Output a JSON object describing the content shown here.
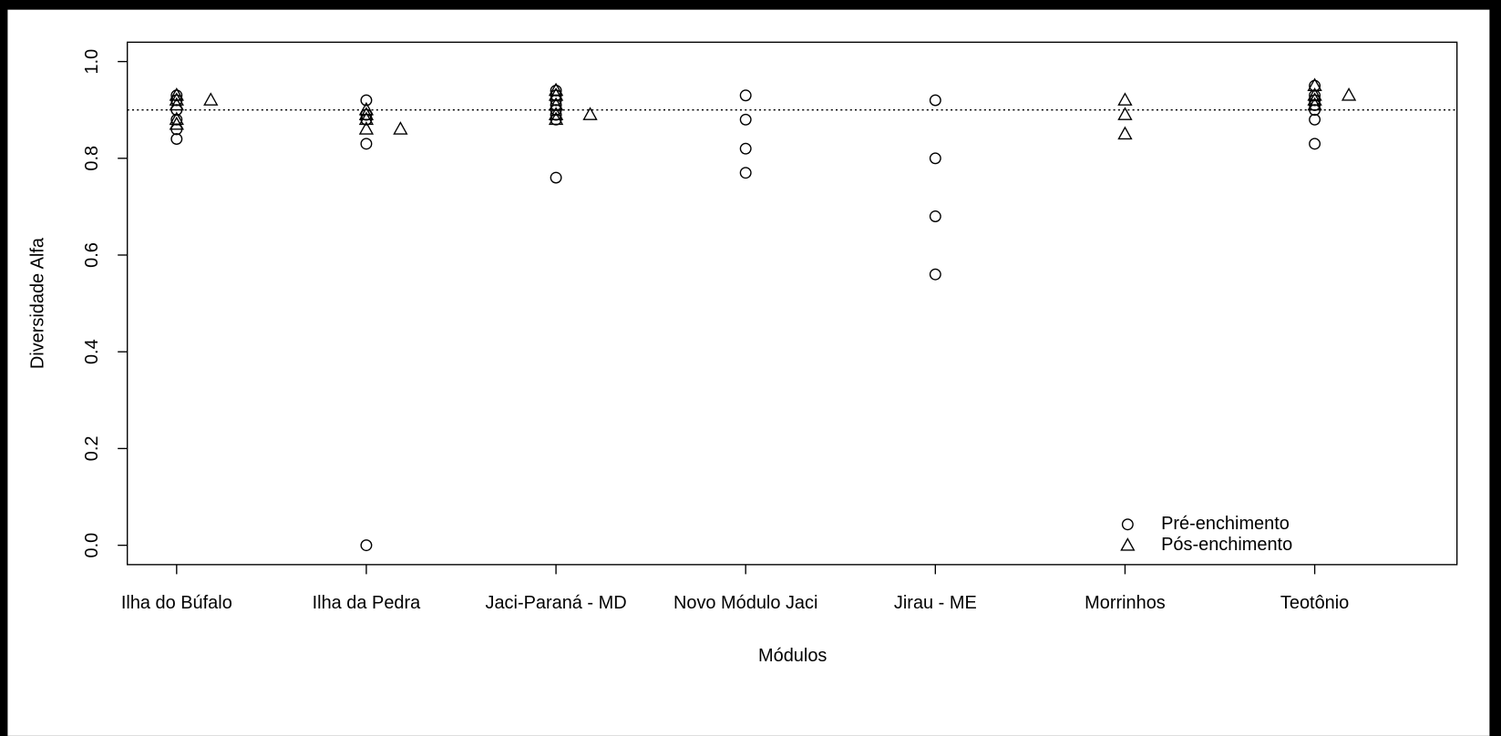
{
  "chart_data": {
    "type": "scatter",
    "x_label": "Módulos",
    "y_label": "Diversidade Alfa",
    "xlim": [
      0.74,
      7.75
    ],
    "ylim": [
      -0.04,
      1.04
    ],
    "xticks": [
      {
        "value": 1,
        "label": "Ilha do Búfalo"
      },
      {
        "value": 2,
        "label": "Ilha da Pedra"
      },
      {
        "value": 3,
        "label": "Jaci-Paraná - MD"
      },
      {
        "value": 4,
        "label": "Novo Módulo Jaci"
      },
      {
        "value": 5,
        "label": "Jirau - ME"
      },
      {
        "value": 6,
        "label": "Morrinhos"
      },
      {
        "value": 7,
        "label": "Teotônio"
      }
    ],
    "yticks": [
      {
        "value": 0,
        "label": "0.0"
      },
      0.2,
      0.4,
      0.6,
      0.8,
      {
        "value": 1,
        "label": "1.0"
      }
    ],
    "hline": 0.9,
    "legend": "bottom-right",
    "series": [
      {
        "name": "Pré-enchimento",
        "marker": "circle",
        "color": "#000000",
        "x": [
          1,
          1,
          1,
          1,
          1,
          1,
          2,
          2,
          2,
          2,
          2,
          3,
          3,
          3,
          3,
          3,
          3,
          3,
          3,
          4,
          4,
          4,
          4,
          5,
          5,
          5,
          5,
          7,
          7,
          7,
          7,
          7,
          7,
          7
        ],
        "values": [
          0.84,
          0.86,
          0.88,
          0.9,
          0.92,
          0.93,
          0.92,
          0.89,
          0.88,
          0.83,
          0.0,
          0.94,
          0.93,
          0.92,
          0.91,
          0.9,
          0.89,
          0.88,
          0.76,
          0.93,
          0.88,
          0.82,
          0.77,
          0.92,
          0.8,
          0.68,
          0.56,
          0.95,
          0.93,
          0.92,
          0.91,
          0.9,
          0.88,
          0.83
        ]
      },
      {
        "name": "Pós-enchimento",
        "marker": "triangle",
        "color": "#000000",
        "x": [
          1,
          1,
          1,
          1,
          1,
          1.18,
          2,
          2,
          2,
          2,
          2.18,
          3,
          3,
          3,
          3,
          3,
          3.18,
          6,
          6,
          6,
          7,
          7,
          7,
          7,
          7.18
        ],
        "values": [
          0.93,
          0.92,
          0.91,
          0.88,
          0.87,
          0.92,
          0.9,
          0.89,
          0.88,
          0.86,
          0.86,
          0.94,
          0.93,
          0.91,
          0.89,
          0.88,
          0.89,
          0.92,
          0.89,
          0.85,
          0.95,
          0.93,
          0.92,
          0.91,
          0.93
        ]
      }
    ]
  }
}
